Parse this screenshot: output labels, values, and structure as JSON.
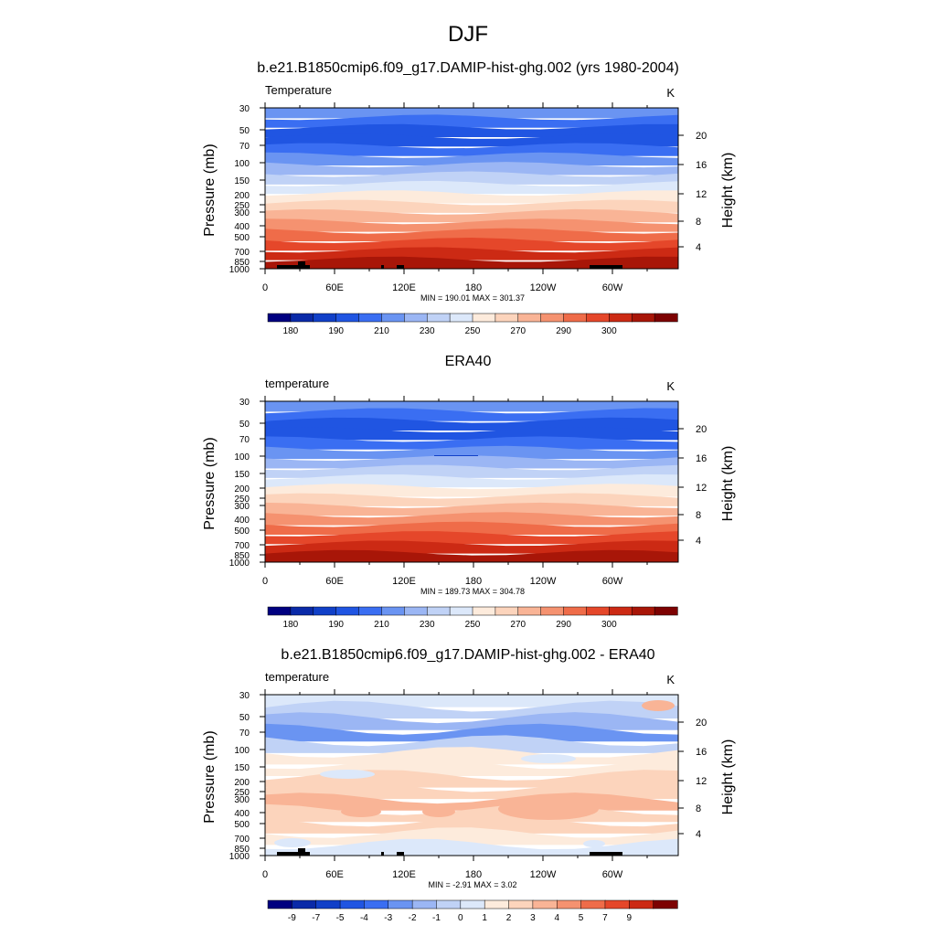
{
  "figure": {
    "title": "DJF"
  },
  "chart_data": [
    {
      "type": "heatmap",
      "title": "b.e21.B1850cmip6.f09_g17.DAMIP-hist-ghg.002 (yrs 1980-2004)",
      "variable_label": "Temperature",
      "units": "K",
      "ylabel": "Pressure (mb)",
      "ylabel_right": "Height (km)",
      "x_ticks": [
        "0",
        "60E",
        "120E",
        "180",
        "120W",
        "60W"
      ],
      "y_ticks": [
        "30",
        "50",
        "70",
        "100",
        "150",
        "200",
        "250",
        "300",
        "400",
        "500",
        "700",
        "850",
        "1000"
      ],
      "y_ticks_right": [
        "20",
        "16",
        "12",
        "8",
        "4"
      ],
      "stats": "MIN = 190.01  MAX = 301.37",
      "min": 190.01,
      "max": 301.37,
      "colorbar_labels": [
        "180",
        "190",
        "210",
        "230",
        "250",
        "270",
        "290",
        "300"
      ],
      "colorbar_colors": [
        "#000080",
        "#0a2aa8",
        "#1140c8",
        "#2055e2",
        "#3a6ef2",
        "#6a94f2",
        "#9bb6f4",
        "#c0d2f6",
        "#dce8fa",
        "#fdebdc",
        "#fcd4bc",
        "#f9b496",
        "#f59270",
        "#ef6c49",
        "#e5472a",
        "#cc2a14",
        "#a81608",
        "#7d0202"
      ],
      "band_colors": [
        "#6a94f2",
        "#3a6ef2",
        "#2055e2",
        "#2055e2",
        "#3a6ef2",
        "#6a94f2",
        "#9bb6f4",
        "#c0d2f6",
        "#dce8fa",
        "#fdebdc",
        "#fcd4bc",
        "#f9b496",
        "#f59270",
        "#ef6c49",
        "#e5472a",
        "#cc2a14",
        "#a81608"
      ]
    },
    {
      "type": "heatmap",
      "title": "ERA40",
      "variable_label": "temperature",
      "units": "K",
      "ylabel": "Pressure (mb)",
      "ylabel_right": "Height (km)",
      "x_ticks": [
        "0",
        "60E",
        "120E",
        "180",
        "120W",
        "60W"
      ],
      "y_ticks": [
        "30",
        "50",
        "70",
        "100",
        "150",
        "200",
        "250",
        "300",
        "400",
        "500",
        "700",
        "850",
        "1000"
      ],
      "y_ticks_right": [
        "20",
        "16",
        "12",
        "8",
        "4"
      ],
      "stats": "MIN = 189.73  MAX = 304.78",
      "min": 189.73,
      "max": 304.78,
      "colorbar_labels": [
        "180",
        "190",
        "210",
        "230",
        "250",
        "270",
        "290",
        "300"
      ],
      "colorbar_colors": [
        "#000080",
        "#0a2aa8",
        "#1140c8",
        "#2055e2",
        "#3a6ef2",
        "#6a94f2",
        "#9bb6f4",
        "#c0d2f6",
        "#dce8fa",
        "#fdebdc",
        "#fcd4bc",
        "#f9b496",
        "#f59270",
        "#ef6c49",
        "#e5472a",
        "#cc2a14",
        "#a81608",
        "#7d0202"
      ],
      "band_colors": [
        "#6a94f2",
        "#3a6ef2",
        "#2055e2",
        "#2055e2",
        "#3a6ef2",
        "#6a94f2",
        "#9bb6f4",
        "#c0d2f6",
        "#dce8fa",
        "#fdebdc",
        "#fcd4bc",
        "#f9b496",
        "#f59270",
        "#ef6c49",
        "#e5472a",
        "#cc2a14",
        "#a81608"
      ]
    },
    {
      "type": "heatmap",
      "title": "b.e21.B1850cmip6.f09_g17.DAMIP-hist-ghg.002 - ERA40",
      "variable_label": "temperature",
      "units": "K",
      "ylabel": "Pressure (mb)",
      "ylabel_right": "Height (km)",
      "x_ticks": [
        "0",
        "60E",
        "120E",
        "180",
        "120W",
        "60W"
      ],
      "y_ticks": [
        "30",
        "50",
        "70",
        "100",
        "150",
        "200",
        "250",
        "300",
        "400",
        "500",
        "700",
        "850",
        "1000"
      ],
      "y_ticks_right": [
        "20",
        "16",
        "12",
        "8",
        "4"
      ],
      "stats": "MIN = -2.91  MAX =  3.02",
      "min": -2.91,
      "max": 3.02,
      "colorbar_labels": [
        "-9",
        "-7",
        "-5",
        "-4",
        "-3",
        "-2",
        "-1",
        "0",
        "1",
        "2",
        "3",
        "4",
        "5",
        "7",
        "9"
      ],
      "colorbar_colors": [
        "#000080",
        "#0a2aa8",
        "#1140c8",
        "#2055e2",
        "#3a6ef2",
        "#6a94f2",
        "#9bb6f4",
        "#c0d2f6",
        "#dce8fa",
        "#fdebdc",
        "#fcd4bc",
        "#f9b496",
        "#f59270",
        "#ef6c49",
        "#e5472a",
        "#cc2a14",
        "#7d0202"
      ],
      "band_colors": [
        "#dce8fa",
        "#c0d2f6",
        "#9bb6f4",
        "#6a94f2",
        "#c0d2f6",
        "#fdebdc",
        "#fdebdc",
        "#fcd4bc",
        "#fcd4bc",
        "#f9b496",
        "#fcd4bc",
        "#fcd4bc",
        "#fdebdc",
        "#dce8fa"
      ]
    }
  ]
}
